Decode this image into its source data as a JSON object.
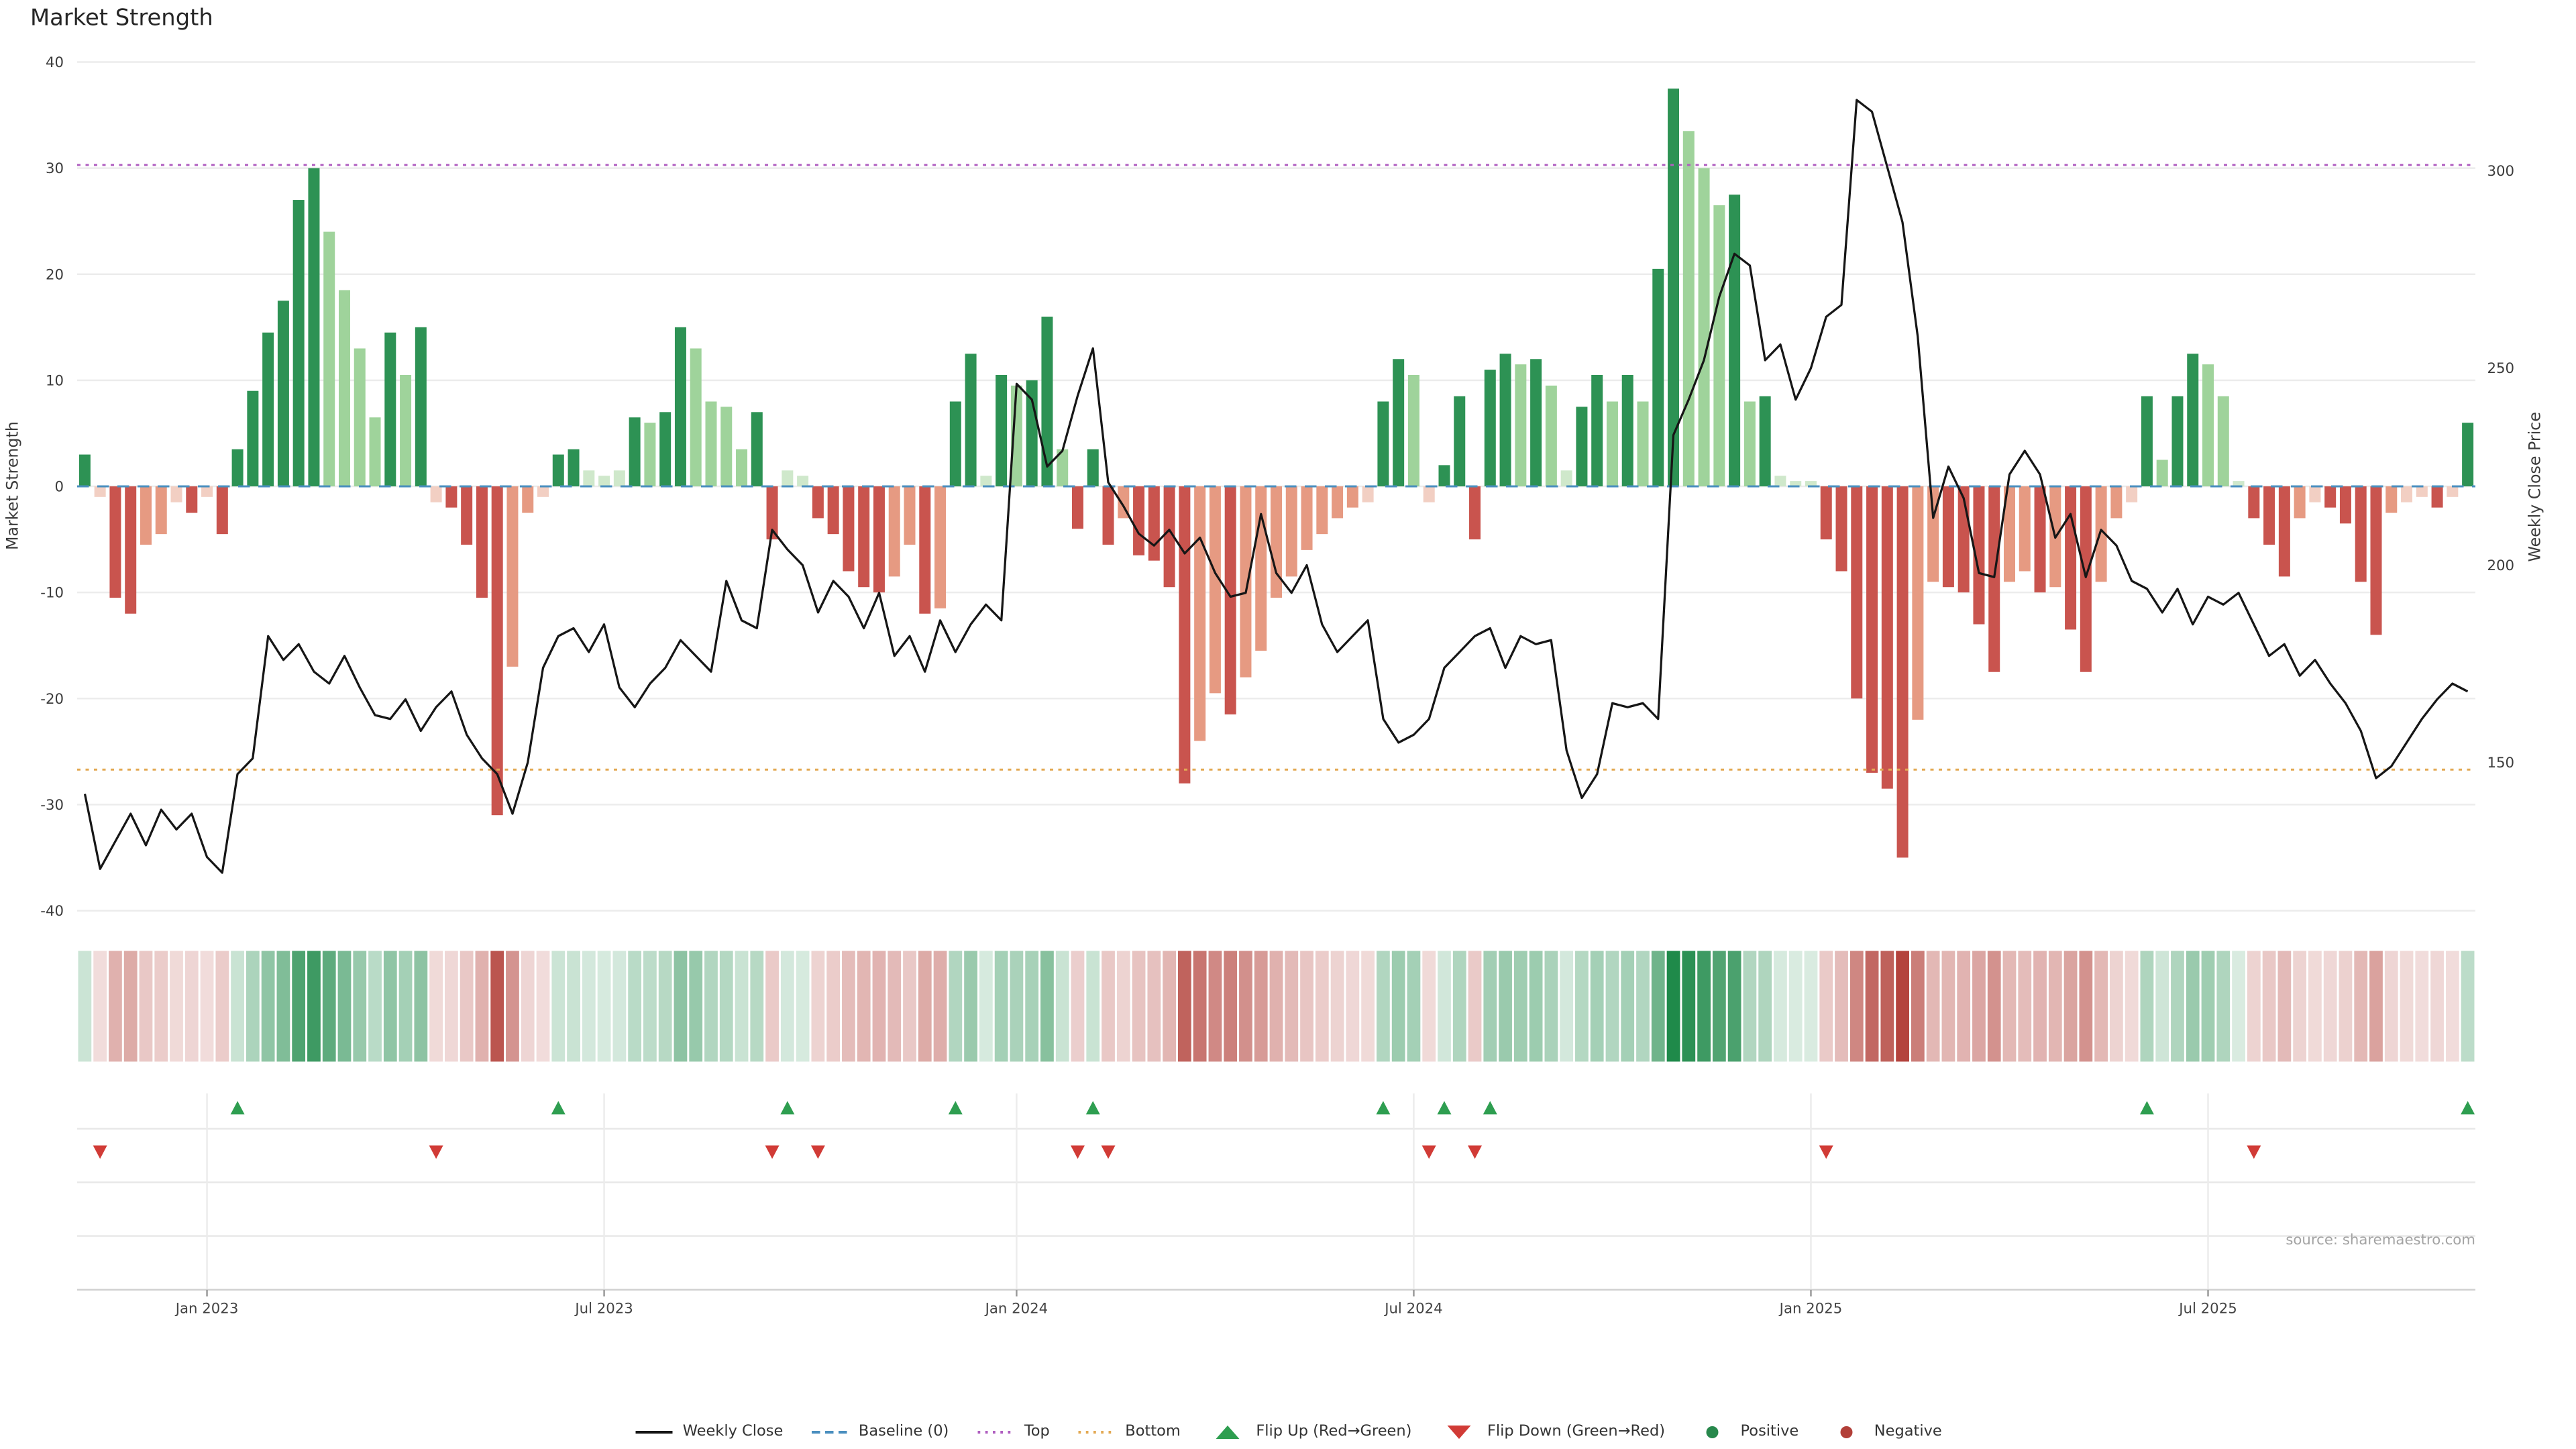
{
  "title": "Market Strength",
  "axis_labels": {
    "left": "Market Strength",
    "right": "Weekly Close Price"
  },
  "source": "source: sharemaestro.com",
  "colors": {
    "bar_pos_dark": "#2d9254",
    "bar_pos_light": "#9fd39b",
    "bar_pos_pale": "#cfe8cb",
    "bar_neg_dark": "#c9544e",
    "bar_neg_light": "#e69a82",
    "bar_neg_pale": "#f2cfc3",
    "heat_pos": "#1f8a4a",
    "heat_neg": "#b23f38",
    "close_line": "#161616",
    "baseline": "#4a8fbf",
    "top_line": "#b05fc0",
    "bottom_line": "#e3a953",
    "flip_up": "#2e9e50",
    "flip_down": "#d13b36",
    "grid": "#ececec",
    "axis_text": "#3c3c3c"
  },
  "legend": [
    {
      "label": "Weekly Close",
      "glyph": "line",
      "color": "#161616"
    },
    {
      "label": "Baseline (0)",
      "glyph": "dash",
      "color": "#4a8fbf"
    },
    {
      "label": "Top",
      "glyph": "dots",
      "color": "#b05fc0"
    },
    {
      "label": "Bottom",
      "glyph": "dots",
      "color": "#e3a953"
    },
    {
      "label": "Flip Up (Red→Green)",
      "glyph": "tri-up",
      "color": "#2e9e50"
    },
    {
      "label": "Flip Down (Green→Red)",
      "glyph": "tri-down",
      "color": "#d13b36"
    },
    {
      "label": "Positive",
      "glyph": "dot",
      "color": "#27884c"
    },
    {
      "label": "Negative",
      "glyph": "dot",
      "color": "#b23f38"
    }
  ],
  "chart_data": {
    "type": "combo",
    "title": "Market Strength",
    "n_weeks": 157,
    "ylim_left": [
      -40,
      40
    ],
    "left_ticks": [
      40,
      30,
      20,
      10,
      0,
      -10,
      -20,
      -30,
      -40
    ],
    "right_ticks": [
      300,
      250,
      200,
      150
    ],
    "right_range": [
      112.4,
      327.6
    ],
    "baseline": 0,
    "top_line": 30.3,
    "bottom_line": -26.7,
    "x_ticks": [
      {
        "label": "Jan 2023",
        "week": 8
      },
      {
        "label": "Jul 2023",
        "week": 34
      },
      {
        "label": "Jan 2024",
        "week": 61
      },
      {
        "label": "Jul 2024",
        "week": 87
      },
      {
        "label": "Jan 2025",
        "week": 113
      },
      {
        "label": "Jul 2025",
        "week": 139
      }
    ],
    "series": [
      {
        "name": "Market Strength",
        "type": "bar",
        "axis": "left",
        "values": [
          3,
          -1,
          -10.5,
          -12,
          -5.5,
          -4.5,
          -1.5,
          -2.5,
          -1,
          -4.5,
          3.5,
          9,
          14.5,
          17.5,
          27,
          30,
          24,
          18.5,
          13,
          6.5,
          14.5,
          10.5,
          15,
          -1.5,
          -2,
          -5.5,
          -10.5,
          -31,
          -17,
          -2.5,
          -1,
          3,
          3.5,
          1.5,
          1,
          1.5,
          6.5,
          6,
          7,
          15,
          13,
          8,
          7.5,
          3.5,
          7,
          -5,
          1.5,
          1,
          -3,
          -4.5,
          -8,
          -9.5,
          -10,
          -8.5,
          -5.5,
          -12,
          -11.5,
          8,
          12.5,
          1,
          10.5,
          9.5,
          10,
          16,
          3.5,
          -4,
          3.5,
          -5.5,
          -3,
          -6.5,
          -7,
          -9.5,
          -28,
          -24,
          -19.5,
          -21.5,
          -18,
          -15.5,
          -10.5,
          -8.5,
          -6,
          -4.5,
          -3,
          -2,
          -1.5,
          8,
          12,
          10.5,
          -1.5,
          2,
          8.5,
          -5,
          11,
          12.5,
          11.5,
          12,
          9.5,
          1.5,
          7.5,
          10.5,
          8,
          10.5,
          8,
          20.5,
          37.5,
          33.5,
          30,
          26.5,
          27.5,
          8,
          8.5,
          1,
          0.5,
          0.5,
          -5,
          -8,
          -20,
          -27,
          -28.5,
          -35,
          -22,
          -9,
          -9.5,
          -10,
          -13,
          -17.5,
          -9,
          -8,
          -10,
          -9.5,
          -13.5,
          -17.5,
          -9,
          -3,
          -1.5,
          8.5,
          2.5,
          8.5,
          12.5,
          11.5,
          8.5,
          0.5,
          -3,
          -5.5,
          -8.5,
          -3,
          -1.5,
          -2,
          -3.5,
          -9,
          -14,
          -2.5,
          -1.5,
          -1,
          -2,
          -1,
          6
        ]
      },
      {
        "name": "Weekly Close",
        "type": "line",
        "axis": "right",
        "values": [
          142,
          123,
          130,
          137,
          129,
          138,
          133,
          137,
          126,
          122,
          147,
          151,
          182,
          176,
          180,
          173,
          170,
          177,
          169,
          162,
          161,
          166,
          158,
          164,
          168,
          157,
          151,
          147,
          137,
          150,
          174,
          182,
          184,
          178,
          185,
          169,
          164,
          170,
          174,
          181,
          177,
          173,
          196,
          186,
          184,
          209,
          204,
          200,
          188,
          196,
          192,
          184,
          193,
          177,
          182,
          173,
          186,
          178,
          185,
          190,
          186,
          246,
          242,
          225,
          229,
          243,
          255,
          221,
          215,
          208,
          205,
          209,
          203,
          207,
          198,
          192,
          193,
          213,
          198,
          193,
          200,
          185,
          178,
          182,
          186,
          161,
          155,
          157,
          161,
          174,
          178,
          182,
          184,
          174,
          182,
          180,
          181,
          153,
          141,
          147,
          165,
          164,
          165,
          161,
          233,
          242,
          252,
          268,
          279,
          276,
          252,
          256,
          242,
          250,
          263,
          266,
          318,
          315,
          301,
          287,
          258,
          212,
          225,
          217,
          198,
          197,
          223,
          229,
          223,
          207,
          213,
          197,
          209,
          205,
          196,
          194,
          188,
          194,
          185,
          192,
          190,
          193,
          185,
          177,
          180,
          172,
          176,
          170,
          165,
          158,
          146,
          149,
          155,
          161,
          166,
          170,
          168
        ]
      }
    ],
    "heatmap": {
      "from_series": "Market Strength"
    },
    "flip_up_weeks": [
      10,
      31,
      46,
      57,
      66,
      85,
      89,
      92,
      135,
      156
    ],
    "flip_down_weeks": [
      1,
      23,
      45,
      48,
      65,
      67,
      88,
      91,
      114,
      142
    ]
  }
}
